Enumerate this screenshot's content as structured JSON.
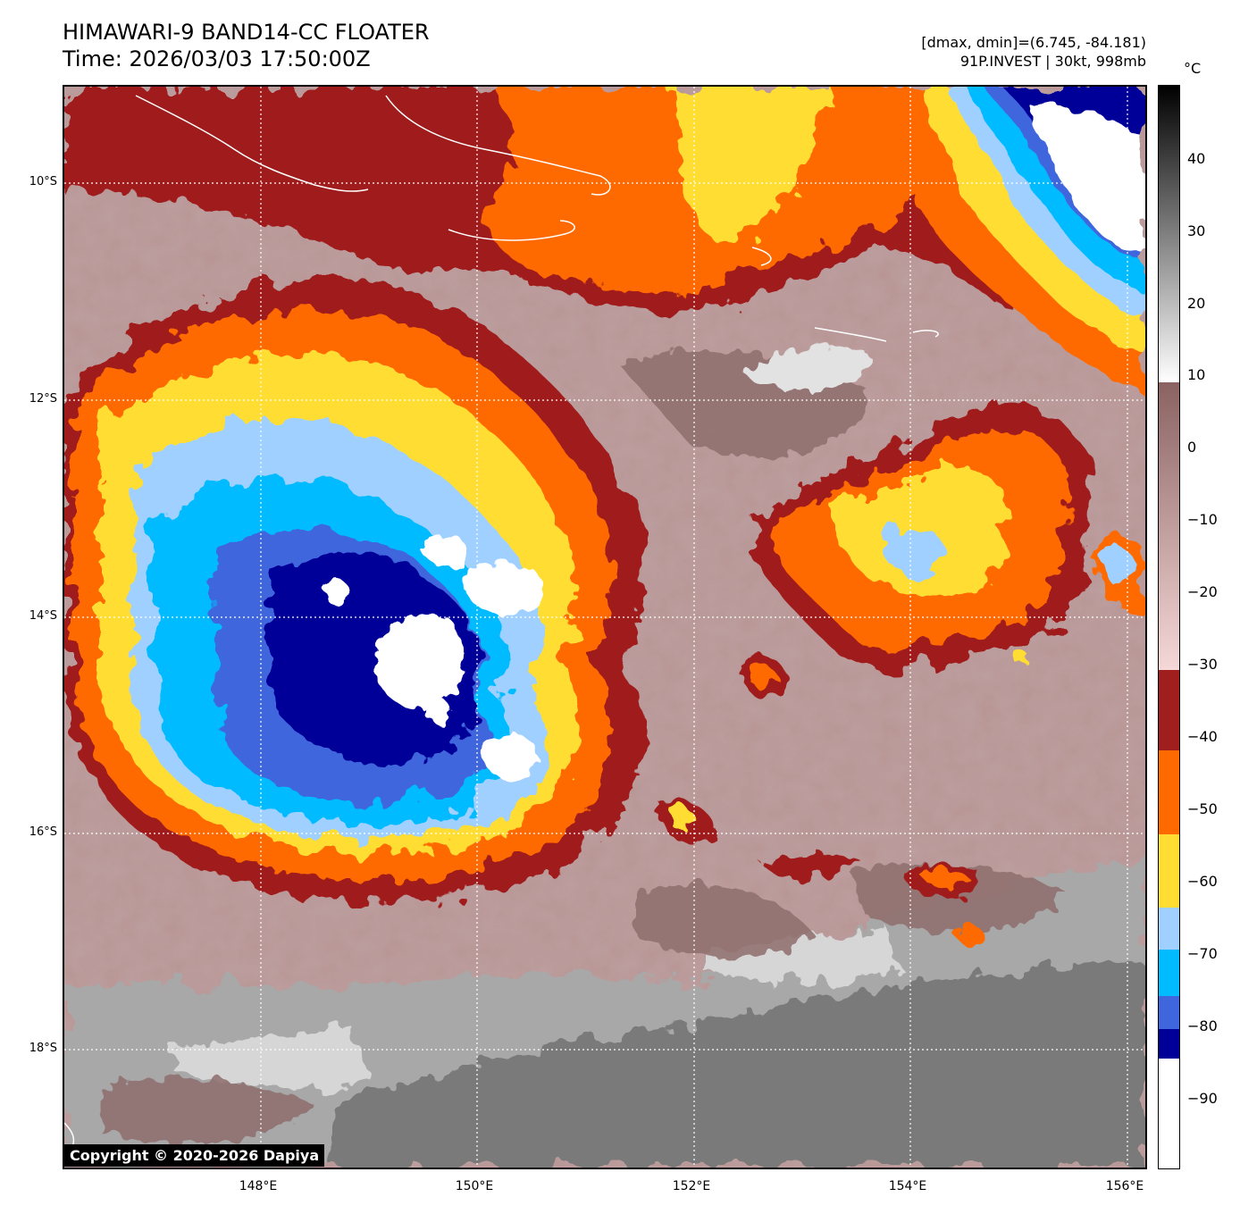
{
  "header": {
    "title_line1": "HIMAWARI-9 BAND14-CC FLOATER",
    "title_line2": "Time: 2026/03/03 17:50:00Z",
    "info_line1": "[dmax, dmin]=(6.745, -84.181)",
    "info_line2": "91P.INVEST | 30kt, 998mb"
  },
  "map": {
    "lat_labels": [
      "10°S",
      "12°S",
      "14°S",
      "16°S",
      "18°S"
    ],
    "lon_labels": [
      "148°E",
      "150°E",
      "152°E",
      "154°E",
      "156°E"
    ]
  },
  "colorbar": {
    "unit": "°C",
    "ticks": [
      "40",
      "30",
      "20",
      "10",
      "0",
      "−10",
      "−20",
      "−30",
      "−40",
      "−50",
      "−60",
      "−70",
      "−80",
      "−90"
    ],
    "colors": {
      "below_minus90": "#ffffff",
      "minus80_to_minus90": "#000099",
      "minus75_to_minus80": "#3f66dd",
      "minus70_to_minus75": "#00bbff",
      "minus65_to_minus70": "#a0d0ff",
      "minus55_to_minus65": "#ffdd33",
      "minus45_to_minus55": "#ff6a00",
      "minus35_to_minus45": "#a01e1e",
      "gradient_minus30_to_10": [
        "#f6d8d8",
        "#8a6262"
      ],
      "gradient_10_to_50": [
        "#ffffff",
        "#000000"
      ]
    }
  },
  "copyright": "Copyright © 2020-2026 Dapiya"
}
